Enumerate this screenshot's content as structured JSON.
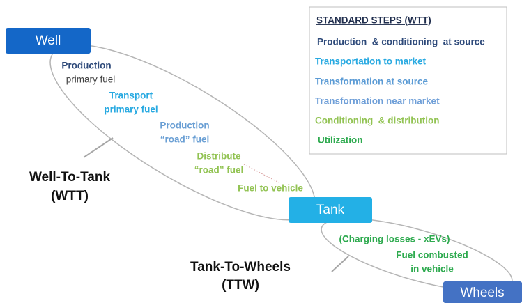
{
  "nodes": {
    "well": "Well",
    "tank": "Tank",
    "wheels": "Wheels"
  },
  "wtt": {
    "label": [
      "Well-To-Tank",
      "(WTT)"
    ],
    "steps": [
      [
        "Production",
        "primary fuel"
      ],
      [
        "Transport",
        "primary fuel"
      ],
      [
        "Production",
        "“road” fuel"
      ],
      [
        "Distribute",
        "“road” fuel"
      ],
      [
        "Fuel to vehicle"
      ]
    ]
  },
  "ttw": {
    "label": [
      "Tank-To-Wheels",
      "(TTW)"
    ],
    "steps": [
      [
        "(Charging losses - xEVs)"
      ],
      [
        "Fuel combusted",
        "in vehicle"
      ]
    ]
  },
  "legend": {
    "title": "STANDARD STEPS (WTT)",
    "items": [
      "Production  & conditioning  at source",
      "Transportation to market",
      "Transformation at source",
      "Transformation near market",
      "Conditioning  & distribution",
      "Utilization"
    ]
  }
}
